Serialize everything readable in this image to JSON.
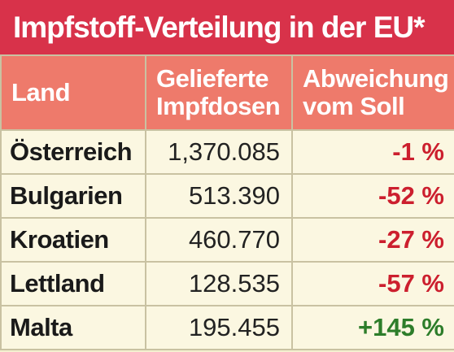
{
  "title": "Impfstoff-Verteilung in der EU*",
  "colors": {
    "title_bg": "#d8324a",
    "header_bg": "#ee7a6b",
    "row_bg": "#fbf7e1",
    "negative": "#cc1f2e",
    "positive": "#2d7d2a"
  },
  "table": {
    "headers": {
      "land": "Land",
      "doses_line1": "Gelieferte",
      "doses_line2": "Impfdosen",
      "dev_line1": "Abweichung",
      "dev_line2": "vom Soll"
    },
    "rows": [
      {
        "land": "Österreich",
        "doses": "1,370.085",
        "deviation": "-1 %",
        "sign": "neg"
      },
      {
        "land": "Bulgarien",
        "doses": "513.390",
        "deviation": "-52 %",
        "sign": "neg"
      },
      {
        "land": "Kroatien",
        "doses": "460.770",
        "deviation": "-27 %",
        "sign": "neg"
      },
      {
        "land": "Lettland",
        "doses": "128.535",
        "deviation": "-57 %",
        "sign": "neg"
      },
      {
        "land": "Malta",
        "doses": "195.455",
        "deviation": "+145 %",
        "sign": "pos"
      }
    ]
  }
}
